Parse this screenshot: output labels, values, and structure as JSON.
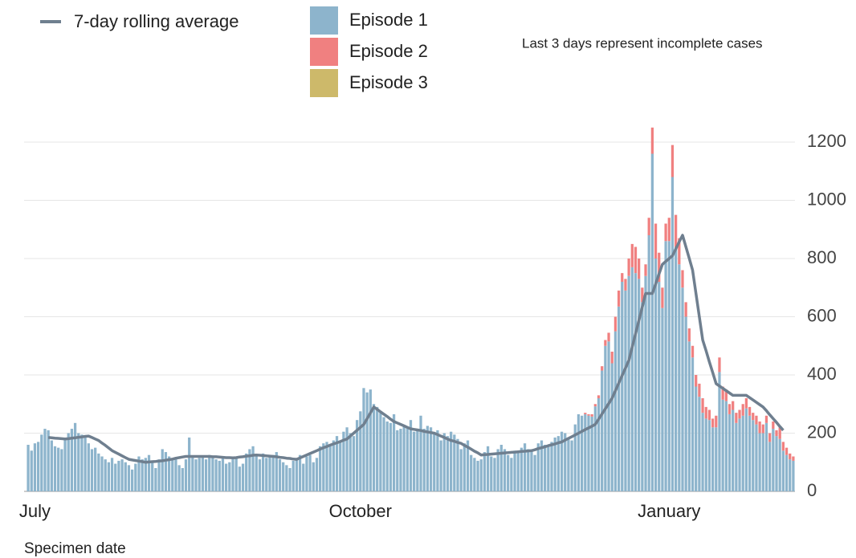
{
  "chart_data": {
    "type": "bar",
    "stacked": true,
    "note": "Last 3 days represent incomplete cases",
    "x_label": "Specimen date",
    "categories": [
      null,
      null,
      "July",
      null,
      null,
      null,
      null,
      null,
      null,
      null,
      null,
      null,
      null,
      null,
      null,
      null,
      null,
      null,
      null,
      null,
      null,
      null,
      null,
      null,
      null,
      null,
      null,
      null,
      null,
      null,
      null,
      null,
      null,
      null,
      null,
      null,
      null,
      null,
      null,
      null,
      null,
      null,
      null,
      null,
      null,
      null,
      null,
      null,
      null,
      null,
      null,
      null,
      null,
      null,
      null,
      null,
      null,
      null,
      null,
      null,
      null,
      null,
      null,
      null,
      null,
      null,
      null,
      null,
      null,
      null,
      null,
      null,
      null,
      null,
      null,
      null,
      null,
      null,
      null,
      null,
      null,
      null,
      null,
      null,
      null,
      null,
      null,
      null,
      null,
      null,
      null,
      null,
      null,
      null,
      null,
      null,
      null,
      null,
      null,
      "October",
      null,
      null,
      null,
      null,
      null,
      null,
      null,
      null,
      null,
      null,
      null,
      null,
      null,
      null,
      null,
      null,
      null,
      null,
      null,
      null,
      null,
      null,
      null,
      null,
      null,
      null,
      null,
      null,
      null,
      null,
      null,
      null,
      null,
      null,
      null,
      null,
      null,
      null,
      null,
      null,
      null,
      null,
      null,
      null,
      null,
      null,
      null,
      null,
      null,
      null,
      null,
      null,
      null,
      null,
      null,
      null,
      null,
      null,
      null,
      null,
      null,
      null,
      null,
      null,
      null,
      null,
      null,
      null,
      null,
      null,
      null,
      null,
      null,
      null,
      null,
      null,
      null,
      null,
      null,
      null,
      null,
      null,
      null,
      null,
      null,
      null,
      null,
      null,
      null,
      null,
      null,
      "January",
      null,
      null,
      null,
      null,
      null,
      null,
      null,
      null,
      null,
      null,
      null,
      null,
      null,
      null,
      null,
      null,
      null,
      null,
      null,
      null,
      null,
      null,
      null,
      null,
      null,
      null,
      null,
      null,
      null,
      null,
      null,
      null,
      null,
      null,
      null,
      null,
      null
    ],
    "ylim": [
      0,
      1250
    ],
    "yticks": [
      0,
      200,
      400,
      600,
      800,
      1000,
      1200
    ],
    "grid": true,
    "series": [
      {
        "name": "Episode 1",
        "type": "bar",
        "color": "#8db4cc",
        "values": [
          160,
          140,
          165,
          170,
          195,
          215,
          210,
          175,
          155,
          150,
          145,
          180,
          200,
          215,
          235,
          200,
          195,
          185,
          165,
          145,
          150,
          130,
          120,
          110,
          100,
          115,
          95,
          105,
          110,
          100,
          90,
          75,
          95,
          120,
          110,
          115,
          125,
          105,
          80,
          110,
          145,
          135,
          120,
          110,
          115,
          90,
          80,
          110,
          185,
          120,
          110,
          115,
          120,
          110,
          125,
          115,
          110,
          105,
          115,
          95,
          100,
          120,
          115,
          85,
          95,
          130,
          145,
          155,
          120,
          110,
          130,
          115,
          120,
          125,
          135,
          110,
          100,
          90,
          80,
          105,
          115,
          125,
          95,
          120,
          125,
          100,
          115,
          155,
          165,
          170,
          160,
          175,
          190,
          175,
          205,
          220,
          200,
          190,
          245,
          275,
          355,
          340,
          350,
          300,
          290,
          270,
          255,
          240,
          235,
          265,
          210,
          215,
          225,
          220,
          245,
          205,
          210,
          260,
          215,
          225,
          220,
          200,
          210,
          175,
          200,
          190,
          205,
          195,
          180,
          145,
          165,
          175,
          125,
          115,
          105,
          110,
          135,
          155,
          120,
          115,
          145,
          160,
          145,
          125,
          115,
          140,
          135,
          150,
          165,
          145,
          140,
          125,
          165,
          175,
          160,
          155,
          170,
          185,
          190,
          205,
          200,
          185,
          175,
          230,
          265,
          260,
          265,
          260,
          257,
          292,
          320,
          415,
          500,
          515,
          440,
          550,
          635,
          720,
          690,
          740,
          770,
          750,
          730,
          650,
          740,
          880,
          1160,
          800,
          720,
          630,
          860,
          860,
          1080,
          840,
          780,
          700,
          600,
          515,
          460,
          360,
          325,
          270,
          250,
          245,
          220,
          220,
          410,
          315,
          310,
          265,
          280,
          235,
          250,
          260,
          285,
          260,
          245,
          230,
          200,
          200,
          235,
          170,
          215,
          190,
          180,
          140,
          125,
          110,
          105
        ]
      },
      {
        "name": "Episode 2",
        "type": "bar",
        "color": "#f08080",
        "values": [
          0,
          0,
          0,
          0,
          0,
          0,
          0,
          0,
          0,
          0,
          0,
          0,
          0,
          0,
          0,
          0,
          0,
          0,
          0,
          0,
          0,
          0,
          0,
          0,
          0,
          0,
          0,
          0,
          0,
          0,
          0,
          0,
          0,
          0,
          0,
          0,
          0,
          0,
          0,
          0,
          0,
          0,
          0,
          0,
          0,
          0,
          0,
          0,
          0,
          0,
          0,
          0,
          0,
          0,
          0,
          0,
          0,
          0,
          0,
          0,
          0,
          0,
          0,
          0,
          0,
          0,
          0,
          0,
          0,
          0,
          0,
          0,
          0,
          0,
          0,
          0,
          0,
          0,
          0,
          0,
          0,
          0,
          0,
          0,
          0,
          0,
          0,
          0,
          0,
          0,
          0,
          0,
          0,
          0,
          0,
          0,
          0,
          0,
          0,
          0,
          0,
          0,
          0,
          0,
          0,
          0,
          0,
          0,
          0,
          0,
          0,
          0,
          0,
          0,
          0,
          0,
          0,
          0,
          0,
          0,
          0,
          0,
          0,
          0,
          0,
          0,
          0,
          0,
          0,
          0,
          0,
          0,
          0,
          0,
          0,
          0,
          0,
          0,
          0,
          0,
          0,
          0,
          0,
          0,
          0,
          0,
          0,
          0,
          0,
          0,
          0,
          0,
          0,
          0,
          0,
          0,
          0,
          0,
          0,
          0,
          0,
          0,
          0,
          0,
          0,
          0,
          5,
          5,
          8,
          8,
          10,
          15,
          20,
          30,
          40,
          50,
          55,
          30,
          40,
          60,
          80,
          90,
          70,
          50,
          40,
          60,
          90,
          120,
          100,
          70,
          60,
          80,
          110,
          110,
          90,
          60,
          50,
          45,
          40,
          40,
          45,
          50,
          40,
          35,
          30,
          40,
          50,
          45,
          40,
          35,
          30,
          35,
          30,
          40,
          35,
          30,
          25,
          30,
          40,
          30,
          25,
          30,
          25,
          20,
          40,
          30,
          25,
          20,
          15
        ]
      },
      {
        "name": "Episode 3",
        "type": "bar",
        "color": "#cdb96a",
        "values": [
          0,
          0,
          0,
          0,
          0,
          0,
          0,
          0,
          0,
          0,
          0,
          0,
          0,
          0,
          0,
          0,
          0,
          0,
          0,
          0,
          0,
          0,
          0,
          0,
          0,
          0,
          0,
          0,
          0,
          0,
          0,
          0,
          0,
          0,
          0,
          0,
          0,
          0,
          0,
          0,
          0,
          0,
          0,
          0,
          0,
          0,
          0,
          0,
          0,
          0,
          0,
          0,
          0,
          0,
          0,
          0,
          0,
          0,
          0,
          0,
          0,
          0,
          0,
          0,
          0,
          0,
          0,
          0,
          0,
          0,
          0,
          0,
          0,
          0,
          0,
          0,
          0,
          0,
          0,
          0,
          0,
          0,
          0,
          0,
          0,
          0,
          0,
          0,
          0,
          0,
          0,
          0,
          0,
          0,
          0,
          0,
          0,
          0,
          0,
          0,
          0,
          0,
          0,
          0,
          0,
          0,
          0,
          0,
          0,
          0,
          0,
          0,
          0,
          0,
          0,
          0,
          0,
          0,
          0,
          0,
          0,
          0,
          0,
          0,
          0,
          0,
          0,
          0,
          0,
          0,
          0,
          0,
          0,
          0,
          0,
          0,
          0,
          0,
          0,
          0,
          0,
          0,
          0,
          0,
          0,
          0,
          0,
          0,
          0,
          0,
          0,
          0,
          0,
          0,
          0,
          0,
          0,
          0,
          0,
          0,
          0,
          0,
          0,
          0,
          0,
          0,
          0,
          0,
          0,
          0,
          0,
          0,
          0,
          0,
          0,
          0,
          0,
          0,
          0,
          0,
          0,
          0,
          0,
          0,
          0,
          0,
          0,
          0,
          0,
          0,
          0,
          0,
          0,
          0,
          0,
          0,
          0,
          0,
          0,
          0,
          0,
          0,
          0,
          0,
          0,
          0,
          0,
          0,
          0,
          0,
          0,
          0,
          0,
          0,
          0,
          0,
          0,
          0,
          0,
          0,
          0,
          0,
          0,
          0,
          0,
          0,
          0,
          0,
          0
        ]
      },
      {
        "name": "7-day rolling average",
        "type": "line",
        "color": "#6f7f8f",
        "values": [
          null,
          null,
          null,
          null,
          null,
          null,
          185,
          184,
          183,
          182,
          181,
          180,
          181,
          183,
          184,
          186,
          187,
          189,
          190,
          185,
          180,
          175,
          166,
          158,
          149,
          140,
          134,
          128,
          122,
          116,
          110,
          108,
          106,
          104,
          102,
          100,
          101,
          102,
          103,
          104,
          105,
          107,
          109,
          111,
          114,
          116,
          118,
          120,
          120,
          120,
          120,
          120,
          120,
          120,
          120,
          119,
          119,
          118,
          117,
          116,
          116,
          115,
          116,
          118,
          119,
          121,
          122,
          124,
          125,
          124,
          123,
          122,
          121,
          120,
          119,
          117,
          116,
          114,
          113,
          111,
          110,
          115,
          120,
          125,
          130,
          135,
          140,
          145,
          150,
          154,
          159,
          163,
          167,
          171,
          176,
          180,
          190,
          200,
          210,
          220,
          230,
          250,
          270,
          290,
          282,
          273,
          265,
          257,
          248,
          240,
          235,
          230,
          225,
          220,
          215,
          213,
          211,
          209,
          206,
          204,
          202,
          200,
          195,
          190,
          185,
          180,
          175,
          172,
          168,
          165,
          158,
          152,
          145,
          138,
          132,
          125,
          126,
          127,
          128,
          129,
          130,
          131,
          132,
          133,
          134,
          135,
          136,
          137,
          138,
          139,
          140,
          143,
          147,
          150,
          153,
          157,
          160,
          163,
          167,
          170,
          176,
          182,
          188,
          194,
          200,
          206,
          212,
          218,
          224,
          230,
          248,
          266,
          284,
          302,
          320,
          346,
          372,
          398,
          424,
          450,
          496,
          542,
          588,
          634,
          680,
          680,
          680,
          713,
          747,
          780,
          790,
          800,
          810,
          833,
          857,
          880,
          840,
          800,
          760,
          680,
          600,
          520,
          483,
          445,
          408,
          370,
          362,
          354,
          346,
          338,
          330,
          330,
          330,
          330,
          330,
          322,
          314,
          306,
          298,
          290,
          277,
          263,
          250,
          237,
          223,
          210,
          null,
          null,
          null
        ]
      }
    ]
  }
}
